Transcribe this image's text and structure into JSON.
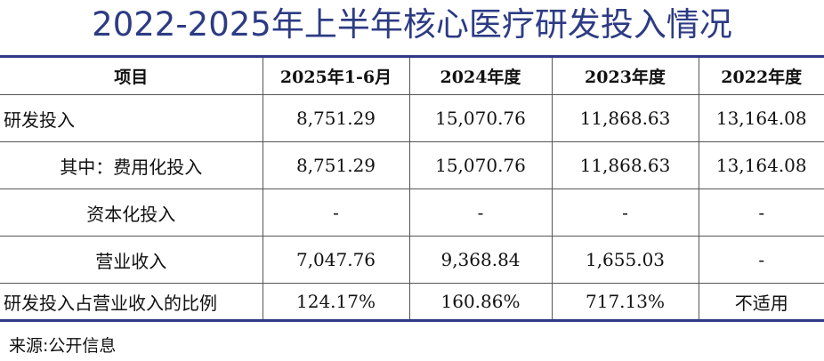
{
  "header": {
    "title": "2022-2025年上半年核心医疗研发投入情况"
  },
  "table": {
    "columns": [
      "项目",
      "2025年1-6月",
      "2024年度",
      "2023年度",
      "2022年度"
    ],
    "rows": [
      [
        "研发投入",
        "8,751.29",
        "15,070.76",
        "11,868.63",
        "13,164.08"
      ],
      [
        "其中：费用化投入",
        "8,751.29",
        "15,070.76",
        "11,868.63",
        "13,164.08"
      ],
      [
        "资本化投入",
        "-",
        "-",
        "-",
        "-"
      ],
      [
        "营业收入",
        "7,047.76",
        "9,368.84",
        "1,655.03",
        "-"
      ],
      [
        "研发投入占营业收入的比例",
        "124.17%",
        "160.86%",
        "717.13%",
        "不适用"
      ]
    ]
  },
  "footer": {
    "source": "来源:公开信息"
  }
}
